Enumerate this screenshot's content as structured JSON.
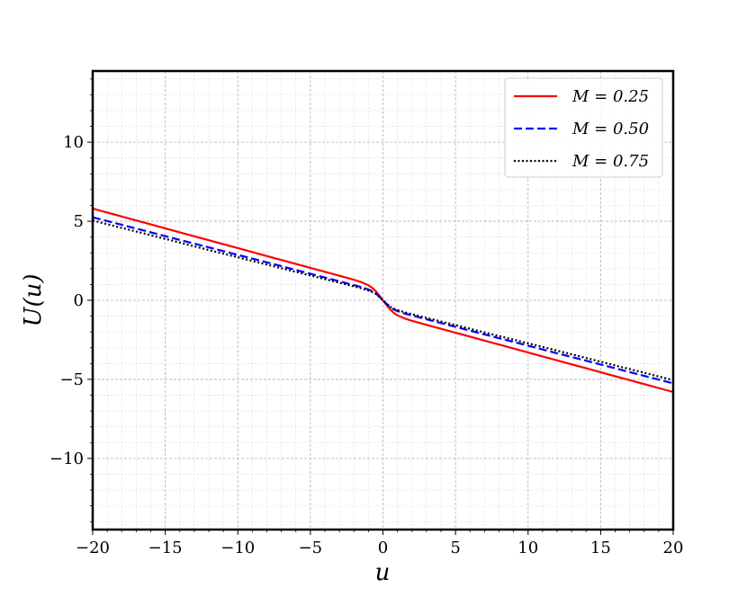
{
  "chart_data": {
    "type": "line",
    "xlabel": "u",
    "ylabel": "U(u)",
    "xlim": [
      -20,
      20
    ],
    "ylim": [
      -14.5,
      14.5
    ],
    "x_ticks": [
      -20,
      -15,
      -10,
      -5,
      0,
      5,
      10,
      15,
      20
    ],
    "x_tick_labels": [
      "−20",
      "−15",
      "−10",
      "−5",
      "0",
      "5",
      "10",
      "15",
      "20"
    ],
    "y_ticks": [
      -10,
      -5,
      0,
      5,
      10
    ],
    "y_tick_labels": [
      "−10",
      "−5",
      "0",
      "5",
      "10"
    ],
    "grid": true,
    "minor_grid": true,
    "legend_position": "top-right",
    "x": [
      -20,
      -18,
      -16,
      -14,
      -12,
      -10,
      -8,
      -6,
      -4,
      -3,
      -2,
      -1.5,
      -1,
      -0.75,
      -0.5,
      -0.25,
      0,
      0.25,
      0.5,
      0.75,
      1,
      1.5,
      2,
      3,
      4,
      6,
      8,
      10,
      12,
      14,
      16,
      18,
      20
    ],
    "series": [
      {
        "name": "M = 0.25",
        "color": "#ff0000",
        "dash": "solid",
        "values": [
          5.8,
          5.3,
          4.8,
          4.3,
          3.8,
          3.3,
          2.8,
          2.3,
          1.8,
          1.55,
          1.3,
          1.15,
          0.95,
          0.8,
          0.58,
          0.3,
          0.0,
          -0.3,
          -0.58,
          -0.8,
          -0.95,
          -1.15,
          -1.3,
          -1.55,
          -1.8,
          -2.3,
          -2.8,
          -3.3,
          -3.8,
          -4.3,
          -4.8,
          -5.3,
          -5.8
        ]
      },
      {
        "name": "M = 0.50",
        "color": "#0000ff",
        "dash": "dashed",
        "values": [
          5.25,
          4.78,
          4.3,
          3.82,
          3.35,
          2.87,
          2.4,
          1.92,
          1.44,
          1.2,
          0.96,
          0.84,
          0.68,
          0.58,
          0.45,
          0.23,
          0.0,
          -0.23,
          -0.45,
          -0.58,
          -0.68,
          -0.84,
          -0.96,
          -1.2,
          -1.44,
          -1.92,
          -2.4,
          -2.87,
          -3.35,
          -3.82,
          -4.3,
          -4.78,
          -5.25
        ]
      },
      {
        "name": "M = 0.75",
        "color": "#000000",
        "dash": "dotted",
        "values": [
          5.05,
          4.58,
          4.12,
          3.65,
          3.18,
          2.72,
          2.26,
          1.8,
          1.34,
          1.11,
          0.88,
          0.76,
          0.62,
          0.53,
          0.41,
          0.21,
          0.0,
          -0.21,
          -0.41,
          -0.53,
          -0.62,
          -0.76,
          -0.88,
          -1.11,
          -1.34,
          -1.8,
          -2.26,
          -2.72,
          -3.18,
          -3.65,
          -4.12,
          -4.58,
          -5.05
        ]
      }
    ],
    "legend": [
      "M = 0.25",
      "M = 0.50",
      "M = 0.75"
    ]
  }
}
